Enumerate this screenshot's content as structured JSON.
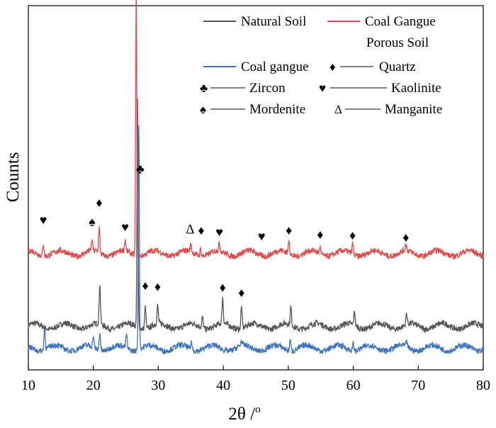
{
  "chart_data": {
    "type": "line",
    "title": "",
    "xlabel": "2θ /",
    "xlabel_superscript": "o",
    "ylabel": "Counts",
    "xlim": [
      10,
      80
    ],
    "x_ticks": [
      10,
      20,
      30,
      40,
      50,
      60,
      70,
      80
    ],
    "y_ticks": [],
    "grid": false,
    "legend_position": "top-right",
    "series": [
      {
        "name": "Natural Soil",
        "color": "#555555",
        "baseline": 0.12,
        "peaks": [
          {
            "x": 21.0,
            "h": 0.11
          },
          {
            "x": 26.8,
            "h": 0.62
          },
          {
            "x": 28.0,
            "h": 0.06
          },
          {
            "x": 29.9,
            "h": 0.05
          },
          {
            "x": 36.8,
            "h": 0.03
          },
          {
            "x": 39.9,
            "h": 0.07
          },
          {
            "x": 42.8,
            "h": 0.06
          },
          {
            "x": 50.4,
            "h": 0.05
          },
          {
            "x": 60.2,
            "h": 0.04
          },
          {
            "x": 68.2,
            "h": 0.03
          }
        ]
      },
      {
        "name": "Coal Gangue Porous Soil",
        "color": "#e04a4a",
        "baseline": 0.32,
        "peaks": [
          {
            "x": 12.3,
            "h": 0.035
          },
          {
            "x": 19.8,
            "h": 0.03
          },
          {
            "x": 20.9,
            "h": 0.07
          },
          {
            "x": 24.9,
            "h": 0.03
          },
          {
            "x": 26.6,
            "h": 0.74
          },
          {
            "x": 35.0,
            "h": 0.02
          },
          {
            "x": 36.5,
            "h": 0.02
          },
          {
            "x": 39.4,
            "h": 0.02
          },
          {
            "x": 50.1,
            "h": 0.04
          },
          {
            "x": 54.9,
            "h": 0.02
          },
          {
            "x": 59.9,
            "h": 0.03
          },
          {
            "x": 68.1,
            "h": 0.02
          }
        ]
      },
      {
        "name": "Coal gangue",
        "color": "#3d73bf",
        "baseline": 0.06,
        "peaks": [
          {
            "x": 12.5,
            "h": 0.06
          },
          {
            "x": 20.0,
            "h": 0.03
          },
          {
            "x": 21.0,
            "h": 0.05
          },
          {
            "x": 25.1,
            "h": 0.04
          },
          {
            "x": 27.0,
            "h": 0.62
          },
          {
            "x": 35.1,
            "h": 0.02
          },
          {
            "x": 42.8,
            "h": 0.015
          },
          {
            "x": 50.3,
            "h": 0.03
          },
          {
            "x": 60.0,
            "h": 0.02
          },
          {
            "x": 68.2,
            "h": 0.015
          }
        ]
      }
    ],
    "annotations": [
      {
        "symbol": "♥",
        "x": 12.3,
        "y": 0.4
      },
      {
        "symbol": "♠",
        "x": 19.8,
        "y": 0.395
      },
      {
        "symbol": "♦",
        "x": 20.9,
        "y": 0.447
      },
      {
        "symbol": "♥",
        "x": 24.9,
        "y": 0.38
      },
      {
        "symbol": "♦",
        "x": 26.6,
        "y": 1.09
      },
      {
        "symbol": "♣",
        "x": 27.2,
        "y": 0.54
      },
      {
        "symbol": "Δ",
        "x": 34.9,
        "y": 0.375
      },
      {
        "symbol": "♦",
        "x": 36.6,
        "y": 0.372
      },
      {
        "symbol": "♥",
        "x": 39.4,
        "y": 0.367
      },
      {
        "symbol": "♥",
        "x": 45.9,
        "y": 0.355
      },
      {
        "symbol": "♦",
        "x": 50.1,
        "y": 0.372
      },
      {
        "symbol": "♦",
        "x": 54.9,
        "y": 0.36
      },
      {
        "symbol": "♦",
        "x": 59.9,
        "y": 0.358
      },
      {
        "symbol": "♦",
        "x": 68.1,
        "y": 0.352
      },
      {
        "symbol": "♦",
        "x": 28.0,
        "y": 0.22
      },
      {
        "symbol": "♦",
        "x": 29.9,
        "y": 0.217
      },
      {
        "symbol": "♦",
        "x": 39.9,
        "y": 0.215
      },
      {
        "symbol": "♦",
        "x": 42.8,
        "y": 0.2
      }
    ]
  },
  "legend": {
    "natural_soil": "Natural Soil",
    "cgps_line1": "Coal Gangue",
    "cgps_line2": "Porous Soil",
    "coal_gangue": "Coal gangue",
    "quartz": "Quartz",
    "zircon": "Zircon",
    "kaolinite": "Kaolinite",
    "mordenite": "Mordenite",
    "manganite": "Manganite",
    "quartz_symbol": "♦",
    "zircon_symbol": "♣",
    "kaolinite_symbol": "♥",
    "mordenite_symbol": "♠",
    "manganite_symbol": "Δ"
  }
}
